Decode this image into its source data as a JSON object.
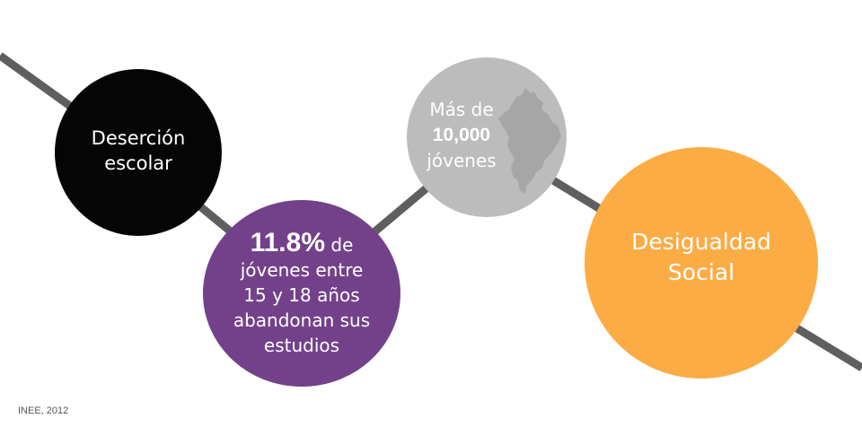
{
  "nodes": {
    "desercion": {
      "line1": "Deserción",
      "line2": "escolar",
      "color": "#050505"
    },
    "abandono": {
      "highlight": "11.8%",
      "rest_inline": " de",
      "line2": "jóvenes entre",
      "line3": "15 y 18 años",
      "line4": "abandonan sus",
      "line5": "estudios",
      "color": "#73418a"
    },
    "jovenes": {
      "line1": "Más de",
      "line2": "10,000",
      "line3": "jóvenes",
      "map_icon": "nuevo-leon-state-map-icon",
      "color": "#bdbcbc"
    },
    "desigualdad": {
      "line1": "Desigualdad",
      "line2": "Social",
      "color": "#fcac45"
    }
  },
  "connector": {
    "color": "#5f5f5f"
  },
  "source": "INEE, 2012"
}
